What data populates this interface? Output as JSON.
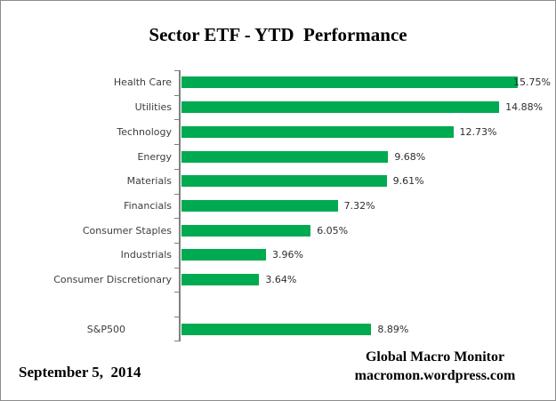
{
  "title": "Sector ETF - YTD  Performance",
  "footer": {
    "date": "September 5,  2014",
    "source_line1": "Global Macro Monitor",
    "source_line2": "macromon.wordpress.com"
  },
  "chart_data": {
    "type": "bar",
    "orientation": "horizontal",
    "title": "Sector ETF - YTD  Performance",
    "categories": [
      "Health Care",
      "Utilities",
      "Technology",
      "Energy",
      "Materials",
      "Financials",
      "Consumer Staples",
      "Industrials",
      "Consumer Discretionary",
      "S&P500"
    ],
    "values": [
      15.75,
      14.88,
      12.73,
      9.68,
      9.61,
      7.32,
      6.05,
      3.96,
      3.64,
      8.89
    ],
    "data_labels": [
      "15.75%",
      "14.88%",
      "12.73%",
      "9.68%",
      "9.61%",
      "7.32%",
      "6.05%",
      "3.96%",
      "3.64%",
      "8.89%"
    ],
    "spacer_before_last": true,
    "xlabel": "",
    "ylabel": "",
    "xlim": [
      0,
      17.5
    ],
    "grid": false,
    "legend": "none",
    "bar_color": "#00aa50",
    "axis_color": "#808080"
  }
}
